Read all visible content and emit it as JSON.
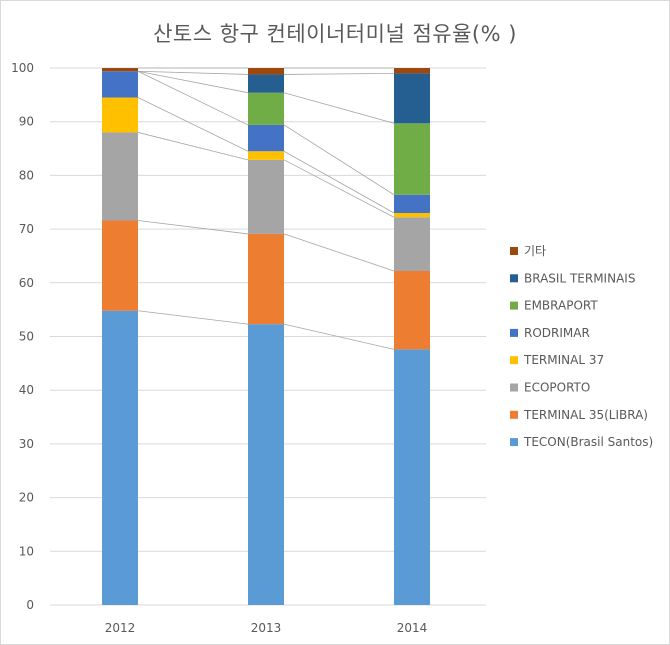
{
  "chart_data": {
    "type": "bar",
    "stacked": true,
    "title": "산토스 항구  컨테이너터미널 점유율(% )",
    "categories": [
      "2012",
      "2013",
      "2014"
    ],
    "ylim": [
      0,
      100
    ],
    "yticks": [
      0,
      10,
      20,
      30,
      40,
      50,
      60,
      70,
      80,
      90,
      100
    ],
    "grid": true,
    "legend_position": "right",
    "series": [
      {
        "name": "TECON(Brasil Santos)",
        "color": "#5B9BD5",
        "values": [
          54.8,
          52.3,
          47.6
        ]
      },
      {
        "name": "TERMINAL 35(LIBRA)",
        "color": "#ED7D31",
        "values": [
          16.8,
          16.8,
          14.6
        ]
      },
      {
        "name": "ECOPORTO",
        "color": "#A5A5A5",
        "values": [
          16.4,
          13.8,
          10.0
        ]
      },
      {
        "name": "TERMINAL 37",
        "color": "#FFC000",
        "values": [
          6.5,
          1.6,
          0.8
        ]
      },
      {
        "name": "RODRIMAR",
        "color": "#4472C4",
        "values": [
          4.9,
          4.9,
          3.4
        ]
      },
      {
        "name": "EMBRAPORT",
        "color": "#70AD47",
        "values": [
          0.0,
          6.0,
          13.3
        ]
      },
      {
        "name": "BRASIL TERMINAIS",
        "color": "#255E91",
        "values": [
          0.0,
          3.4,
          9.3
        ]
      },
      {
        "name": "기타",
        "color": "#9E480E",
        "values": [
          0.6,
          1.2,
          1.0
        ]
      }
    ]
  }
}
